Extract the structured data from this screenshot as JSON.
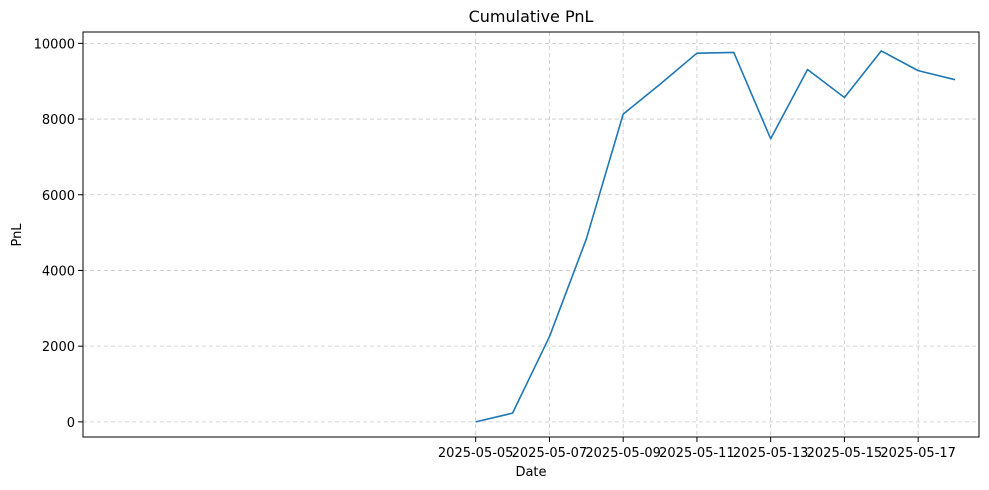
{
  "chart_data": {
    "type": "line",
    "title": "Cumulative PnL",
    "xlabel": "Date",
    "ylabel": "PnL",
    "x": [
      "2025-05-05",
      "2025-05-06",
      "2025-05-07",
      "2025-05-08",
      "2025-05-09",
      "2025-05-10",
      "2025-05-11",
      "2025-05-12",
      "2025-05-13",
      "2025-05-14",
      "2025-05-15",
      "2025-05-16",
      "2025-05-17",
      "2025-05-18"
    ],
    "series": [
      {
        "values": [
          0,
          230,
          2250,
          4830,
          8130,
          8920,
          9740,
          9760,
          7480,
          9310,
          8570,
          9800,
          9280,
          9040
        ]
      }
    ],
    "xlim": [
      "2025-04-24T08:24",
      "2025-05-18T15:36"
    ],
    "ylim": [
      -400,
      10300
    ],
    "xticks": [
      "2025-05-05",
      "2025-05-07",
      "2025-05-09",
      "2025-05-11",
      "2025-05-13",
      "2025-05-15",
      "2025-05-17"
    ],
    "yticks": [
      0,
      2000,
      4000,
      6000,
      8000,
      10000
    ],
    "grid": true,
    "grid_style": "dashed",
    "line_color": "#1f77b4"
  }
}
